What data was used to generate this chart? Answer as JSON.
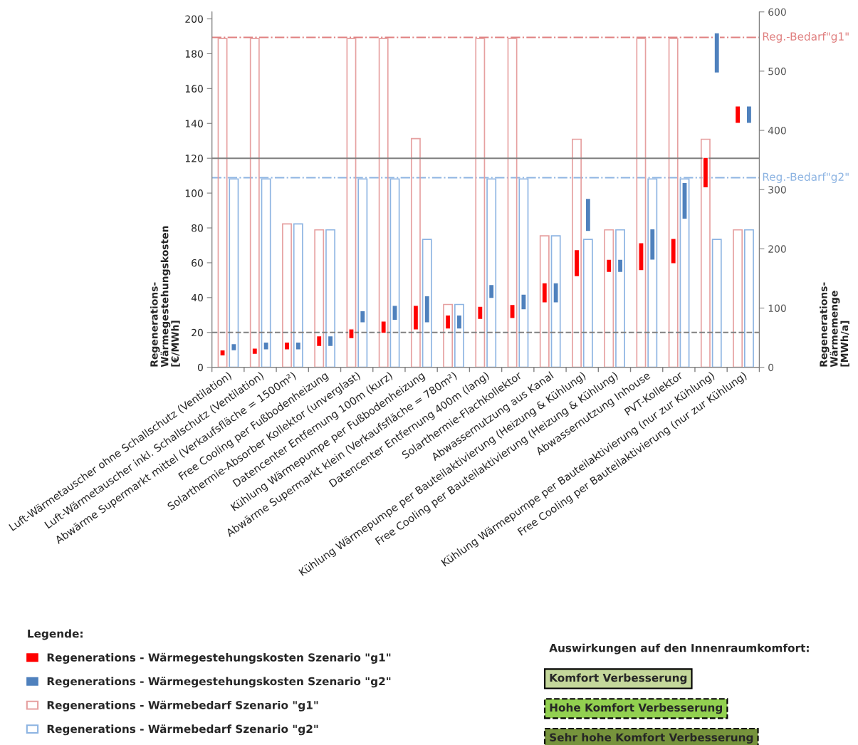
{
  "chart_data": {
    "type": "bar",
    "categories": [
      "Luft-Wärmetauscher ohne Schallschutz (Ventilation)",
      "Luft-Wärmetauscher inkl. Schallschutz (Ventilation)",
      "Abwärme Supermarkt mittel (Verkaufsfläche = 1500m²)",
      "Free Cooling per Fußbodenheizung",
      "Solarthermie-Absorber Kollektor (unverglast)",
      "Datencenter Entfernung 100m (kurz)",
      "Kühlung Wärmepumpe per Fußbodenheizung",
      "Abwärme Supermarkt klein (Verkaufsfläche = 780m²)",
      "Datencenter Entfernung 400m (lang)",
      "Solarthermie-Flachkollektor",
      "Abwassernutzung aus Kanal",
      "Kühlung Wärmepumpe per Bauteilaktivierung (Heizung & Kühlung)",
      "Free Cooling per Bauteilaktivierung (Heizung & Kühlung)",
      "Abwassernutzung Inhouse",
      "PVT-Kollektor",
      "Kühlung Wärmepumpe per Bauteilaktivierung (nur zur Kühlung)",
      "Free Cooling per Bauteilaktivierung (nur zur Kühlung)"
    ],
    "series": [
      {
        "name": "Regenerations - Wärmegestehungskosten Szenario \"g1\"",
        "color": "#ff0000",
        "axis": "y",
        "base": [
          6.5,
          7.5,
          10,
          12,
          16.5,
          19.5,
          21.5,
          22,
          27.5,
          28,
          37,
          52,
          54.5,
          55.5,
          59.5,
          103,
          140
        ],
        "values": [
          3.5,
          3.5,
          4.5,
          6,
          5.5,
          7,
          14,
          8,
          7.5,
          8,
          11.5,
          15.5,
          7.5,
          16,
          14.5,
          17.5,
          10
        ]
      },
      {
        "name": "Regenerations - Wärmegestehungskosten Szenario \"g2\"",
        "color": "#4f81bd",
        "axis": "y",
        "base": [
          9.5,
          10,
          10,
          12,
          25.5,
          27,
          25.5,
          22,
          39.5,
          33,
          37,
          78,
          54.5,
          61.5,
          85,
          169,
          140
        ],
        "values": [
          4,
          4.5,
          4.5,
          6,
          7,
          8.5,
          15.5,
          8,
          8,
          9,
          11.5,
          19,
          7.5,
          18,
          21,
          23,
          10
        ]
      },
      {
        "name": "Regenerations - Wärmebedarf Szenario \"g1\"",
        "color": "#e6a0a0",
        "axis": "y2",
        "values": [
          555,
          555,
          242,
          232,
          555,
          555,
          386,
          106,
          555,
          555,
          222,
          385,
          232,
          555,
          555,
          385,
          232
        ]
      },
      {
        "name": "Regenerations - Wärmebedarf Szenario \"g2\"",
        "color": "#8db4e2",
        "axis": "y2",
        "values": [
          318,
          318,
          242,
          232,
          318,
          318,
          216,
          106,
          318,
          318,
          222,
          216,
          232,
          318,
          318,
          216,
          232
        ]
      }
    ],
    "ylabel": "Regenerations-\nWärmegestehungskosten\n[€/MWh]",
    "y2label": "Regenerations-\nWärmemenge\n[MWh/a]",
    "ylim": [
      0,
      204
    ],
    "yticks": [
      0,
      20,
      40,
      60,
      80,
      100,
      120,
      140,
      160,
      180,
      200
    ],
    "y2lim": [
      0,
      600
    ],
    "y2ticks": [
      0,
      100,
      200,
      300,
      400,
      500,
      600
    ],
    "ref_lines": [
      {
        "axis": "y2",
        "value": 557,
        "label": "Reg.-Bedarf\"g1\"",
        "color": "#e08080",
        "line_style": "dashdot"
      },
      {
        "axis": "y2",
        "value": 320,
        "label": "Reg.-Bedarf\"g2\"",
        "color": "#8db4e2",
        "line_style": "dashdot"
      },
      {
        "axis": "y",
        "value": 120,
        "color": "#808080",
        "line_style": "solid"
      },
      {
        "axis": "y",
        "value": 20,
        "color": "#808080",
        "line_style": "dashed"
      }
    ],
    "legend_title": "Legende:",
    "legend": "bottom left",
    "grid": false,
    "annotations": [
      "Auswirkungen auf den Innenraumkomfort:",
      "Komfort Verbesserung",
      "Hohe Komfort Verbesserung",
      "Sehr hohe Komfort Verbesserung"
    ]
  }
}
